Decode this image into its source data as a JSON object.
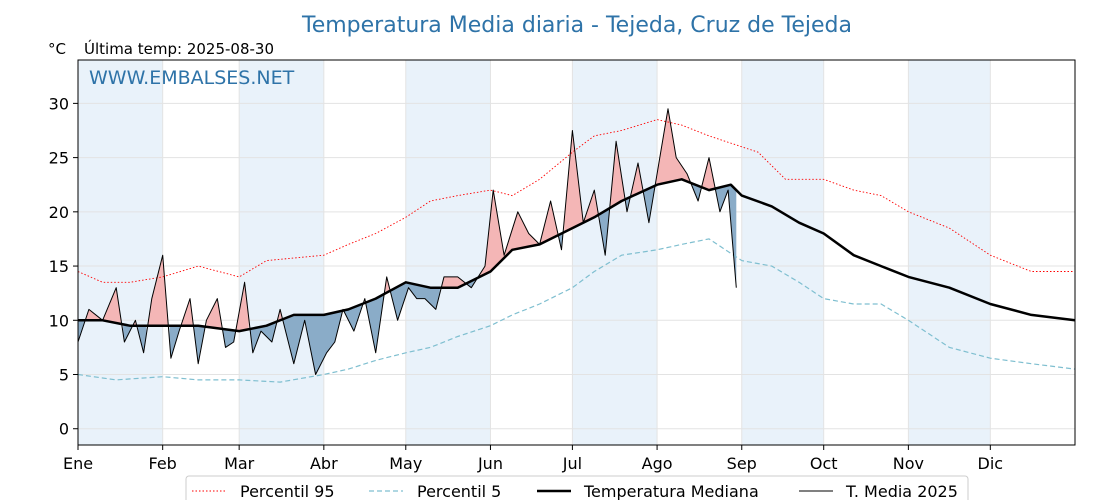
{
  "chart_data": {
    "type": "line",
    "title": "Temperatura Media diaria - Tejeda, Cruz de Tejeda",
    "unit": "°C",
    "last_temp_label": "Última temp: 2025-08-30",
    "watermark": "WWW.EMBALSES.NET",
    "xlabel": "",
    "ylabel": "",
    "ylim": [
      -1.5,
      34
    ],
    "y_ticks": [
      0,
      5,
      10,
      15,
      20,
      25,
      30
    ],
    "x_range_days": [
      1,
      366
    ],
    "month_labels": [
      "Ene",
      "Feb",
      "Mar",
      "Abr",
      "May",
      "Jun",
      "Jul",
      "Ago",
      "Sep",
      "Oct",
      "Nov",
      "Dic"
    ],
    "month_start_days": [
      1,
      32,
      60,
      91,
      121,
      152,
      182,
      213,
      244,
      274,
      305,
      335
    ],
    "grid": true,
    "legend_placement": "bottom-center",
    "colors": {
      "title": "#2e73a8",
      "p95": "#ff0000",
      "p5": "#7fbfd0",
      "median": "#000000",
      "mean2025": "#000000",
      "above_fill": "#f4b6b6",
      "below_fill": "#8aacc8",
      "shade_band": "#e9f2fa"
    },
    "series": [
      {
        "name": "Percentil 95",
        "style": "dotted-red",
        "x": [
          1,
          10,
          20,
          32,
          45,
          60,
          70,
          91,
          100,
          110,
          121,
          130,
          140,
          152,
          160,
          170,
          182,
          190,
          200,
          213,
          222,
          232,
          244,
          250,
          260,
          274,
          285,
          295,
          305,
          320,
          335,
          350,
          366
        ],
        "y": [
          14.5,
          13.5,
          13.5,
          14,
          15,
          14,
          15.5,
          16,
          17,
          18,
          19.5,
          21,
          21.5,
          22,
          21.5,
          23,
          25.5,
          27,
          27.5,
          28.5,
          28,
          27,
          26,
          25.5,
          23,
          23,
          22,
          21.5,
          20,
          18.5,
          16,
          14.5,
          14.5
        ]
      },
      {
        "name": "Percentil 5",
        "style": "dashed-lightblue",
        "x": [
          1,
          15,
          32,
          45,
          60,
          75,
          91,
          100,
          110,
          121,
          130,
          140,
          152,
          160,
          170,
          182,
          190,
          200,
          213,
          222,
          232,
          244,
          255,
          265,
          274,
          285,
          295,
          305,
          320,
          335,
          350,
          366
        ],
        "y": [
          5,
          4.5,
          4.8,
          4.5,
          4.5,
          4.3,
          5,
          5.5,
          6.3,
          7,
          7.5,
          8.5,
          9.5,
          10.5,
          11.5,
          13,
          14.5,
          16,
          16.5,
          17,
          17.5,
          15.5,
          15,
          13.5,
          12,
          11.5,
          11.5,
          10,
          7.5,
          6.5,
          6,
          5.5
        ]
      },
      {
        "name": "Temperatura Mediana",
        "style": "thick-black",
        "x": [
          1,
          10,
          20,
          32,
          45,
          60,
          70,
          80,
          91,
          100,
          110,
          121,
          130,
          140,
          152,
          160,
          170,
          182,
          190,
          200,
          213,
          222,
          232,
          240,
          244,
          255,
          265,
          274,
          285,
          295,
          305,
          320,
          335,
          350,
          366
        ],
        "y": [
          10,
          10,
          9.5,
          9.5,
          9.5,
          9,
          9.5,
          10.5,
          10.5,
          11,
          12,
          13.5,
          13,
          13,
          14.5,
          16.5,
          17,
          18.5,
          19.5,
          21,
          22.5,
          23,
          22,
          22.5,
          21.5,
          20.5,
          19,
          18,
          16,
          15,
          14,
          13,
          11.5,
          10.5,
          10
        ]
      },
      {
        "name": "T. Media 2025",
        "style": "thin-black",
        "x": [
          1,
          5,
          10,
          15,
          18,
          22,
          25,
          28,
          32,
          35,
          38,
          42,
          45,
          48,
          52,
          55,
          58,
          62,
          65,
          68,
          72,
          75,
          80,
          84,
          88,
          92,
          95,
          98,
          102,
          106,
          110,
          114,
          118,
          122,
          125,
          128,
          132,
          135,
          140,
          145,
          150,
          153,
          157,
          162,
          166,
          170,
          174,
          178,
          182,
          186,
          190,
          194,
          198,
          202,
          206,
          210,
          214,
          217,
          220,
          224,
          228,
          232,
          236,
          239,
          242
        ],
        "y": [
          8,
          11,
          10,
          13,
          8,
          10,
          7,
          12,
          16,
          6.5,
          9,
          12,
          6,
          10,
          12,
          7.5,
          8,
          13.5,
          7,
          9,
          8,
          11,
          6,
          10,
          5,
          7,
          8,
          11,
          9,
          12,
          7,
          14,
          10,
          13,
          12,
          12,
          11,
          14,
          14,
          13,
          15,
          22,
          16,
          20,
          18,
          17,
          21,
          16.5,
          27.5,
          19,
          22,
          16,
          26.5,
          20,
          24.5,
          19,
          25,
          29.5,
          25,
          23.5,
          21,
          25,
          20,
          22,
          13
        ]
      }
    ],
    "legend": [
      "Percentil 95",
      "Percentil 5",
      "Temperatura Mediana",
      "T. Media 2025"
    ]
  }
}
